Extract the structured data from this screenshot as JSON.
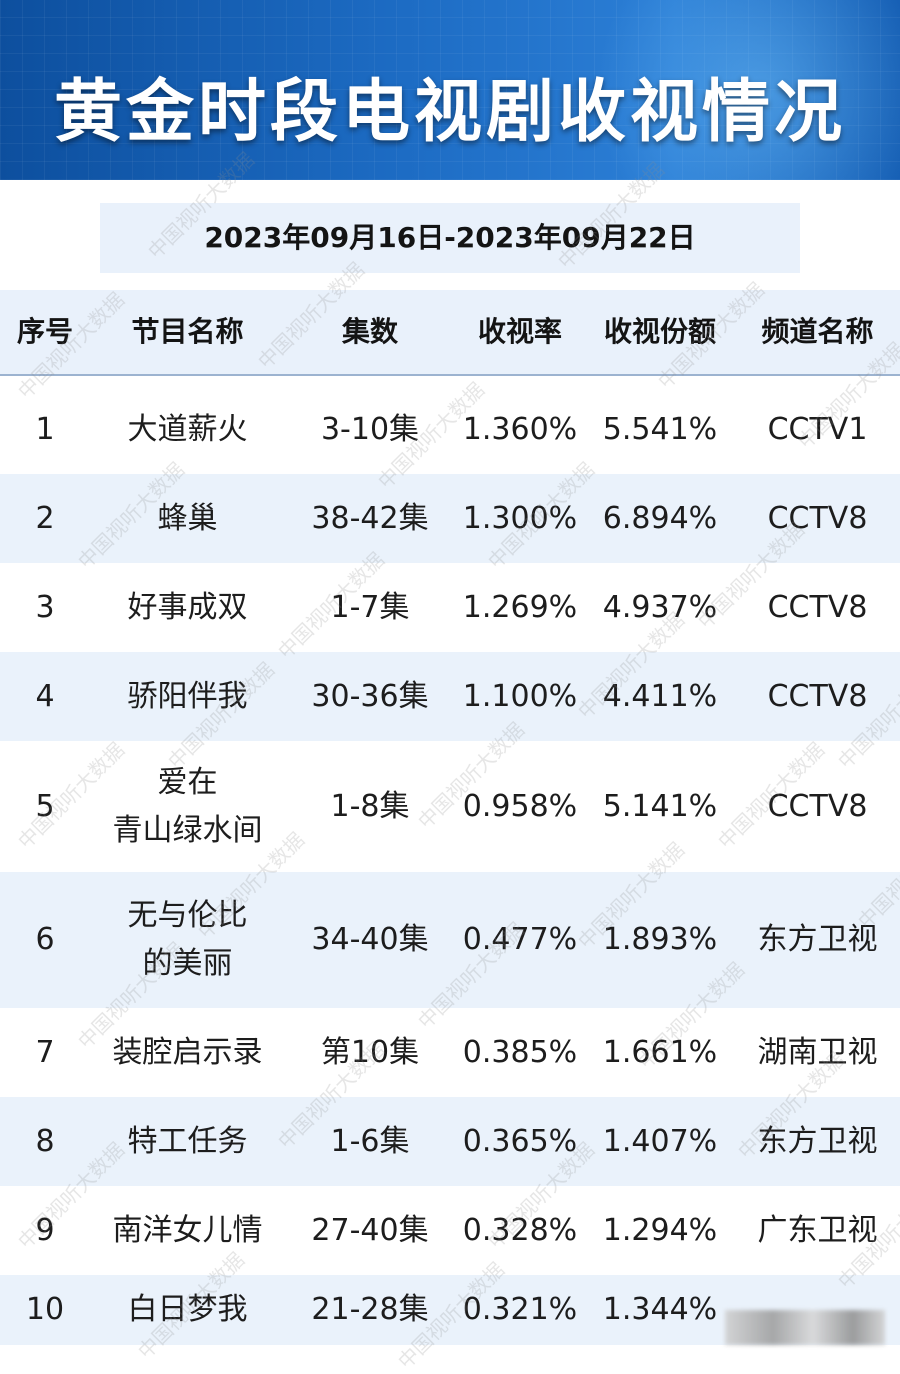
{
  "title": "黄金时段电视剧收视情况",
  "date_range": "2023年09月16日-2023年09月22日",
  "watermark_text": "中国视听大数据",
  "columns": [
    "序号",
    "节目名称",
    "集数",
    "收视率",
    "收视份额",
    "频道名称"
  ],
  "rows": [
    {
      "no": "1",
      "name": [
        "大道薪火"
      ],
      "episodes": "3-10集",
      "rating": "1.360%",
      "share": "5.541%",
      "channel": "CCTV1"
    },
    {
      "no": "2",
      "name": [
        "蜂巢"
      ],
      "episodes": "38-42集",
      "rating": "1.300%",
      "share": "6.894%",
      "channel": "CCTV8"
    },
    {
      "no": "3",
      "name": [
        "好事成双"
      ],
      "episodes": "1-7集",
      "rating": "1.269%",
      "share": "4.937%",
      "channel": "CCTV8"
    },
    {
      "no": "4",
      "name": [
        "骄阳伴我"
      ],
      "episodes": "30-36集",
      "rating": "1.100%",
      "share": "4.411%",
      "channel": "CCTV8"
    },
    {
      "no": "5",
      "name": [
        "爱在",
        "青山绿水间"
      ],
      "episodes": "1-8集",
      "rating": "0.958%",
      "share": "5.141%",
      "channel": "CCTV8"
    },
    {
      "no": "6",
      "name": [
        "无与伦比",
        "的美丽"
      ],
      "episodes": "34-40集",
      "rating": "0.477%",
      "share": "1.893%",
      "channel": "东方卫视"
    },
    {
      "no": "7",
      "name": [
        "装腔启示录"
      ],
      "episodes": "第10集",
      "rating": "0.385%",
      "share": "1.661%",
      "channel": "湖南卫视"
    },
    {
      "no": "8",
      "name": [
        "特工任务"
      ],
      "episodes": "1-6集",
      "rating": "0.365%",
      "share": "1.407%",
      "channel": "东方卫视"
    },
    {
      "no": "9",
      "name": [
        "南洋女儿情"
      ],
      "episodes": "27-40集",
      "rating": "0.328%",
      "share": "1.294%",
      "channel": "广东卫视"
    },
    {
      "no": "10",
      "name": [
        "白日梦我"
      ],
      "episodes": "21-28集",
      "rating": "0.321%",
      "share": "1.344%",
      "channel": ""
    }
  ],
  "colors": {
    "banner": "#1d6cc4",
    "row_shade": "#eaf2fb",
    "header_bg": "#e9f1fb"
  }
}
